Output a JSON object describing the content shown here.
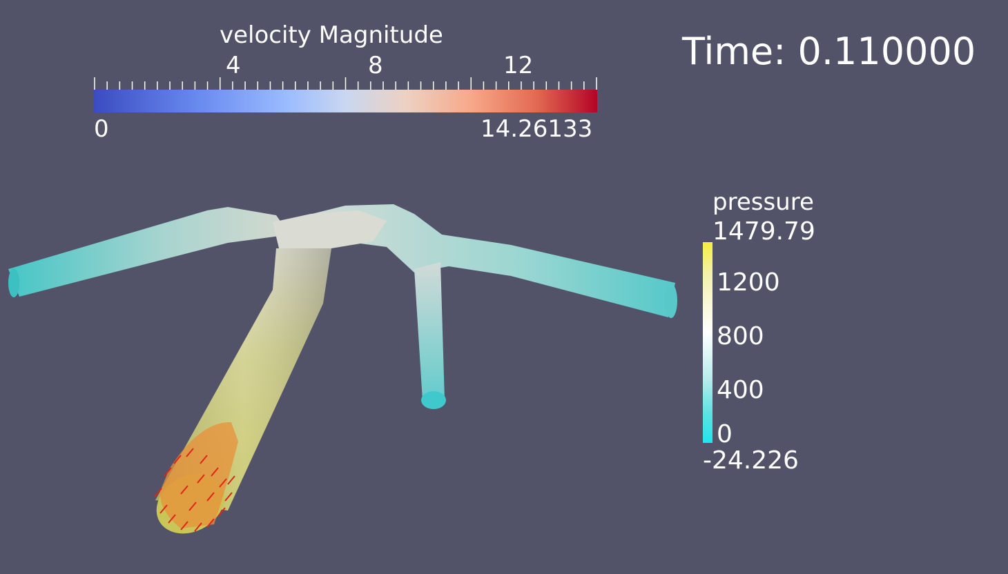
{
  "time": {
    "label": "Time: 0.110000"
  },
  "velocity_legend": {
    "title": "velocity Magnitude",
    "range_min": "0",
    "range_max": "14.26133",
    "tick_labels": [
      "4",
      "8",
      "12"
    ],
    "colors": [
      "#3b4cc0",
      "#dddcdc",
      "#b40426"
    ]
  },
  "pressure_legend": {
    "title": "pressure",
    "range_max": "1479.79",
    "range_min": "-24.226",
    "tick_labels": [
      "1200",
      "800",
      "400",
      "0"
    ],
    "colors": [
      "#1ee6ee",
      "#ffffff",
      "#f7f03c"
    ]
  }
}
